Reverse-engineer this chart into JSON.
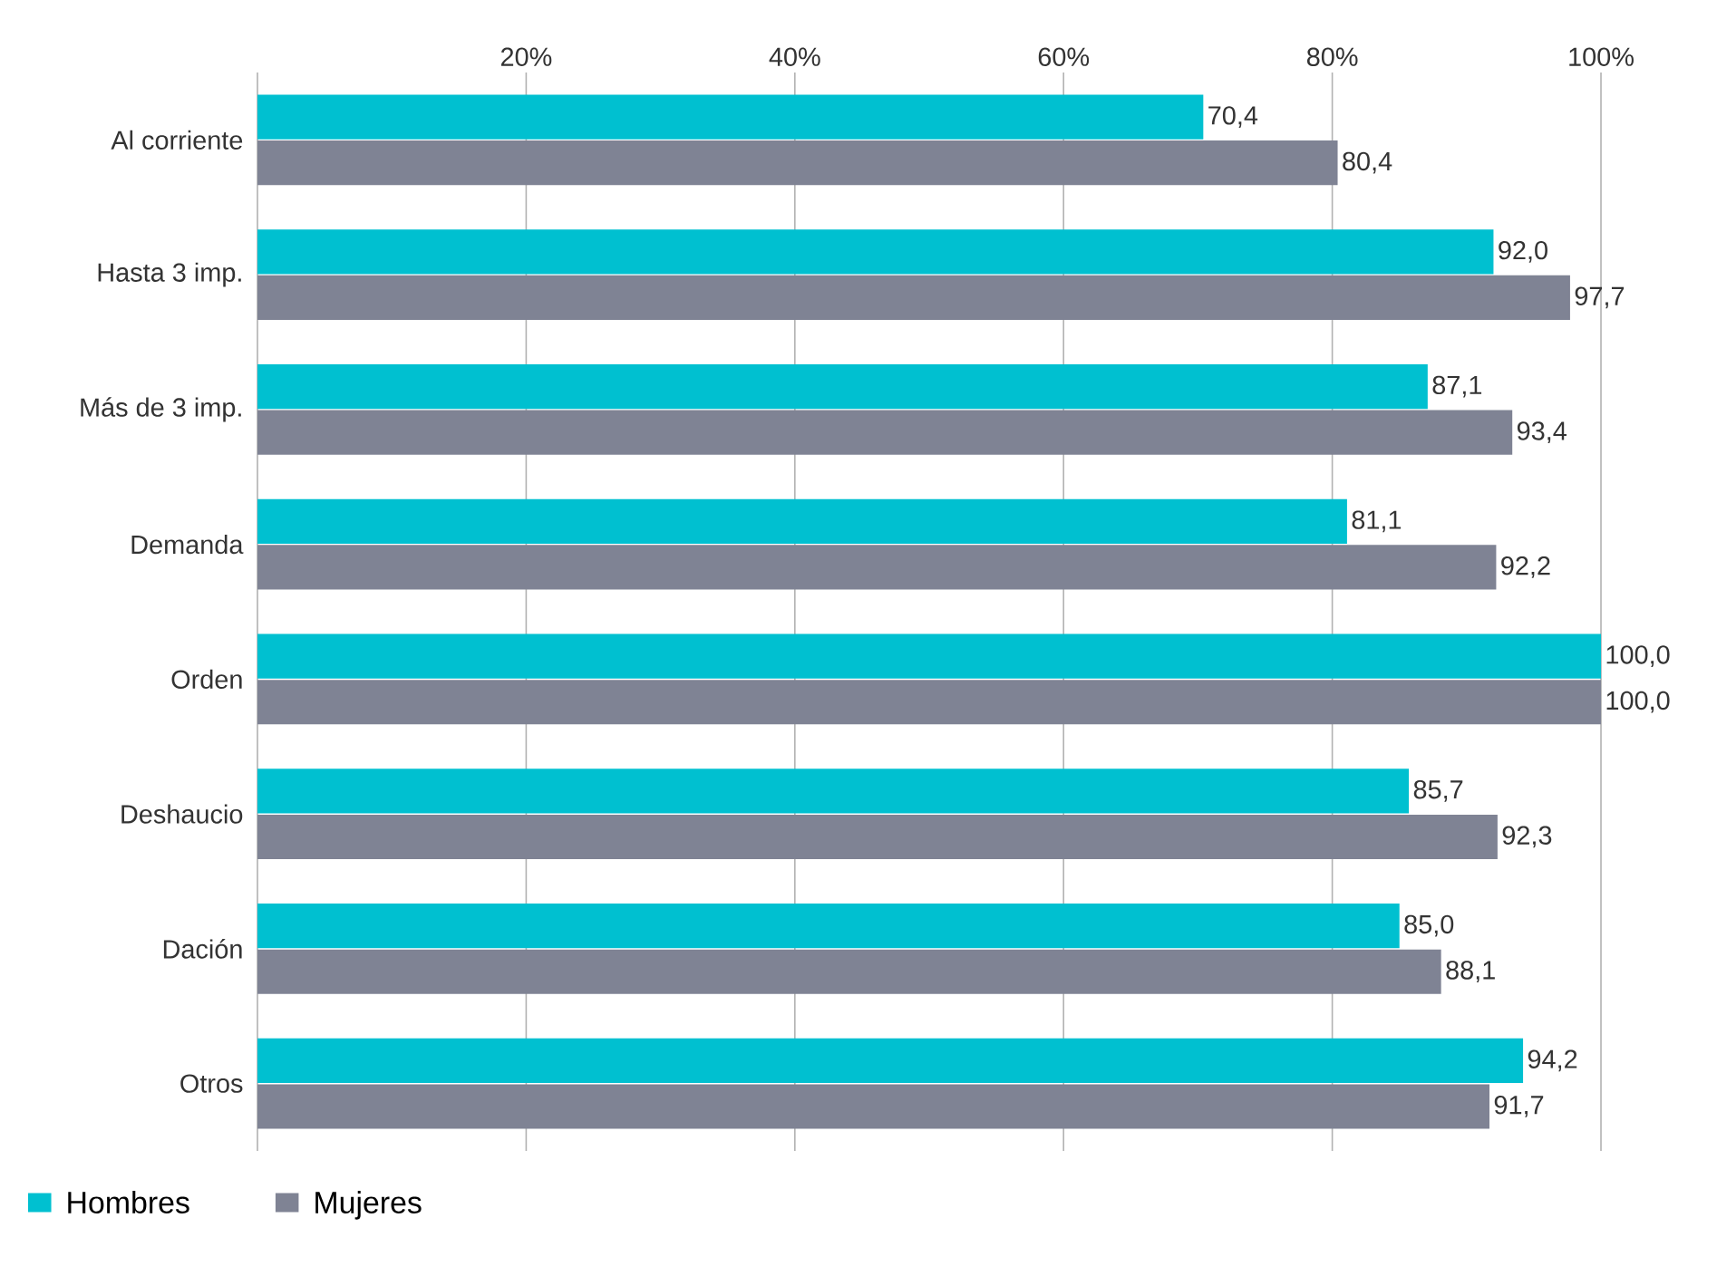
{
  "chart_data": {
    "type": "bar",
    "orientation": "horizontal",
    "categories": [
      "Al corriente",
      "Hasta 3 imp.",
      "Más de 3 imp.",
      "Demanda",
      "Orden",
      "Deshaucio",
      "Dación",
      "Otros"
    ],
    "series": [
      {
        "name": "Hombres",
        "color": "#00c0d0",
        "values": [
          70.4,
          92.0,
          87.1,
          81.1,
          100.0,
          85.7,
          85.0,
          94.2
        ],
        "value_labels": [
          "70,4",
          "92,0",
          "87,1",
          "81,1",
          "100,0",
          "85,7",
          "85,0",
          "94,2"
        ]
      },
      {
        "name": "Mujeres",
        "color": "#7f8394",
        "values": [
          80.4,
          97.7,
          93.4,
          92.2,
          100.0,
          92.3,
          88.1,
          91.7
        ],
        "value_labels": [
          "80,4",
          "97,7",
          "93,4",
          "92,2",
          "100,0",
          "92,3",
          "88,1",
          "91,7"
        ]
      }
    ],
    "xlim": [
      0,
      100
    ],
    "xticks": [
      {
        "value": 0,
        "label": null
      },
      {
        "value": 20,
        "label": "20%"
      },
      {
        "value": 40,
        "label": "40%"
      },
      {
        "value": 60,
        "label": "60%"
      },
      {
        "value": 80,
        "label": "80%"
      },
      {
        "value": 100,
        "label": "100%"
      }
    ],
    "grid": "x",
    "legend": "bottom left"
  }
}
